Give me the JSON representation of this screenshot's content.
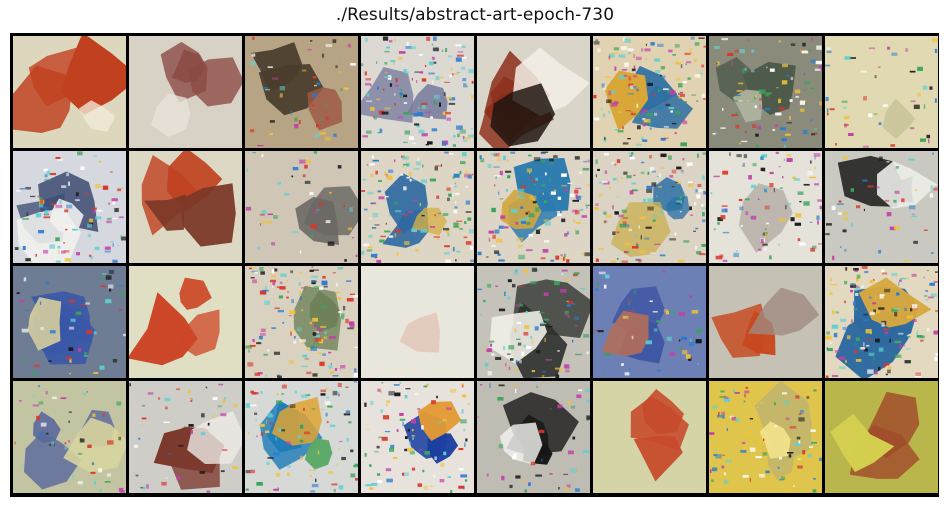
{
  "figure": {
    "title": "./Results/abstract-art-epoch-730"
  },
  "grid": {
    "rows": 4,
    "cols": 8,
    "tiles": [
      {
        "bg": "#ddd8bd",
        "blobs": [
          {
            "c": "#c0401f",
            "n": 3
          },
          {
            "c": "#f1ead8",
            "n": 1
          }
        ],
        "noise": 0
      },
      {
        "bg": "#d8d1c5",
        "blobs": [
          {
            "c": "#8a4a43",
            "n": 3
          },
          {
            "c": "#e9e2da",
            "n": 1
          }
        ],
        "noise": 0
      },
      {
        "bg": "#b7a485",
        "blobs": [
          {
            "c": "#4a3c2c",
            "n": 2
          },
          {
            "c": "#9e5844",
            "n": 1
          }
        ],
        "noise": 1
      },
      {
        "bg": "#dcd8d2",
        "blobs": [
          {
            "c": "#7a7f9e",
            "n": 2
          }
        ],
        "noise": 3
      },
      {
        "bg": "#d9d5c9",
        "blobs": [
          {
            "c": "#8b2c18",
            "n": 3
          },
          {
            "c": "#f2efe6",
            "n": 1
          },
          {
            "c": "#1e1410",
            "n": 1
          }
        ],
        "noise": 0
      },
      {
        "bg": "#e1d2b1",
        "blobs": [
          {
            "c": "#2f6fa3",
            "n": 2
          },
          {
            "c": "#d9a638",
            "n": 1
          }
        ],
        "noise": 3
      },
      {
        "bg": "#8b8b7c",
        "blobs": [
          {
            "c": "#4e5a4a",
            "n": 2
          },
          {
            "c": "#b0b6a2",
            "n": 1
          }
        ],
        "noise": 2
      },
      {
        "bg": "#e1d9b1",
        "blobs": [
          {
            "c": "#c8c29a",
            "n": 1
          }
        ],
        "noise": 1
      },
      {
        "bg": "#d5d8de",
        "blobs": [
          {
            "c": "#3c4b72",
            "n": 2
          },
          {
            "c": "#f1f1ef",
            "n": 2
          }
        ],
        "noise": 2
      },
      {
        "bg": "#ddd8c4",
        "blobs": [
          {
            "c": "#c04322",
            "n": 2
          },
          {
            "c": "#7c3827",
            "n": 2
          }
        ],
        "noise": 0
      },
      {
        "bg": "#cfc6b6",
        "blobs": [
          {
            "c": "#6b6764",
            "n": 2
          }
        ],
        "noise": 1
      },
      {
        "bg": "#ded6c5",
        "blobs": [
          {
            "c": "#2f69a1",
            "n": 2
          },
          {
            "c": "#d7b047",
            "n": 1
          }
        ],
        "noise": 3
      },
      {
        "bg": "#ddd5c5",
        "blobs": [
          {
            "c": "#2a7ab0",
            "n": 2
          },
          {
            "c": "#d2a640",
            "n": 1
          }
        ],
        "noise": 3
      },
      {
        "bg": "#dbd3c3",
        "blobs": [
          {
            "c": "#2c71a5",
            "n": 2
          },
          {
            "c": "#c9b154",
            "n": 1
          }
        ],
        "noise": 3
      },
      {
        "bg": "#e5e2da",
        "blobs": [
          {
            "c": "#bab4ad",
            "n": 1
          }
        ],
        "noise": 2
      },
      {
        "bg": "#c9c9c2",
        "blobs": [
          {
            "c": "#2c2c2a",
            "n": 2
          },
          {
            "c": "#eeeeea",
            "n": 1
          }
        ],
        "noise": 1
      },
      {
        "bg": "#6f7d94",
        "blobs": [
          {
            "c": "#3a58a7",
            "n": 3
          },
          {
            "c": "#d8d0a0",
            "n": 1
          }
        ],
        "noise": 1
      },
      {
        "bg": "#e1dfc3",
        "blobs": [
          {
            "c": "#cc4626",
            "n": 3
          }
        ],
        "noise": 0
      },
      {
        "bg": "#d9d2c1",
        "blobs": [
          {
            "c": "#6a7e56",
            "n": 2
          }
        ],
        "noise": 3
      },
      {
        "bg": "#e9e7dc",
        "blobs": [
          {
            "c": "#e2c7b9",
            "n": 1
          }
        ],
        "noise": 0
      },
      {
        "bg": "#c4c2b9",
        "blobs": [
          {
            "c": "#2e302e",
            "n": 2
          },
          {
            "c": "#f0efe8",
            "n": 1
          }
        ],
        "noise": 2
      },
      {
        "bg": "#6c80b5",
        "blobs": [
          {
            "c": "#3d55a4",
            "n": 2
          },
          {
            "c": "#b26e5b",
            "n": 1
          }
        ],
        "noise": 1
      },
      {
        "bg": "#c6c1b5",
        "blobs": [
          {
            "c": "#c8481e",
            "n": 2
          },
          {
            "c": "#9f8b80",
            "n": 1
          }
        ],
        "noise": 0
      },
      {
        "bg": "#e2d9c0",
        "blobs": [
          {
            "c": "#2e6aa0",
            "n": 2
          },
          {
            "c": "#d7a940",
            "n": 1
          }
        ],
        "noise": 3
      },
      {
        "bg": "#c3c5a2",
        "blobs": [
          {
            "c": "#5b6a9c",
            "n": 3
          },
          {
            "c": "#d7d49e",
            "n": 1
          }
        ],
        "noise": 1
      },
      {
        "bg": "#cfcdc7",
        "blobs": [
          {
            "c": "#7b3a2d",
            "n": 2
          },
          {
            "c": "#edeae5",
            "n": 1
          }
        ],
        "noise": 1
      },
      {
        "bg": "#d6d9d5",
        "blobs": [
          {
            "c": "#1f7db8",
            "n": 2
          },
          {
            "c": "#e0a335",
            "n": 1
          },
          {
            "c": "#5aa867",
            "n": 1
          }
        ],
        "noise": 2
      },
      {
        "bg": "#e7e3dc",
        "blobs": [
          {
            "c": "#1b3fa0",
            "n": 2
          },
          {
            "c": "#e39a33",
            "n": 1
          }
        ],
        "noise": 2
      },
      {
        "bg": "#bfbcb4",
        "blobs": [
          {
            "c": "#161616",
            "n": 3
          },
          {
            "c": "#f2f2ee",
            "n": 1
          }
        ],
        "noise": 1
      },
      {
        "bg": "#d5d4a7",
        "blobs": [
          {
            "c": "#c74a2c",
            "n": 3
          }
        ],
        "noise": 0
      },
      {
        "bg": "#e0c54c",
        "blobs": [
          {
            "c": "#c0b56e",
            "n": 2
          },
          {
            "c": "#f0e08a",
            "n": 1
          }
        ],
        "noise": 2
      },
      {
        "bg": "#b9b64b",
        "blobs": [
          {
            "c": "#a04a2a",
            "n": 2
          },
          {
            "c": "#d4cf50",
            "n": 1
          }
        ],
        "noise": 0
      }
    ]
  }
}
